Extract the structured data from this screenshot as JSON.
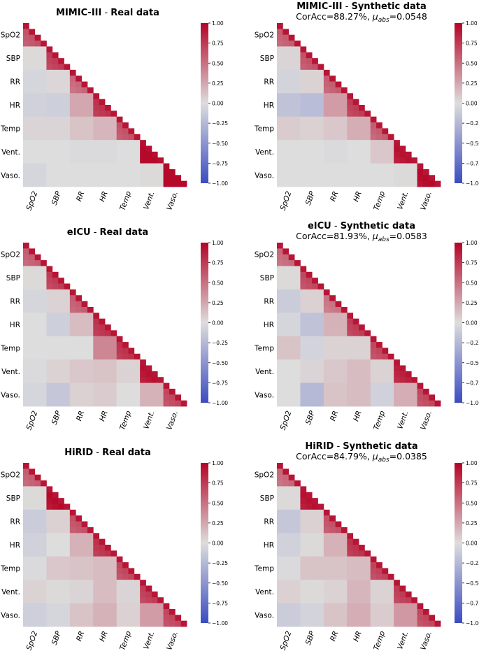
{
  "chart_data": {
    "type": "heatmap",
    "variables": [
      "SpO2",
      "SBP",
      "RR",
      "HR",
      "Temp",
      "Vent.",
      "Vaso."
    ],
    "colorbar": {
      "range": [
        -1.0,
        1.0
      ],
      "ticks": [
        "1.00",
        "0.75",
        "0.50",
        "0.25",
        "0.00",
        "−0.25",
        "−0.50",
        "−0.75",
        "−1.00"
      ],
      "colormap": [
        "#3b4cc0",
        "#dddddd",
        "#b40426"
      ]
    },
    "panels": [
      {
        "dataset": "MIMIC-III",
        "kind": "Real data",
        "title_sep": " - ",
        "stats": null,
        "block_corr": [
          [
            0.55
          ],
          [
            0.02,
            0.65
          ],
          [
            -0.05,
            0.03,
            0.45
          ],
          [
            -0.08,
            -0.1,
            0.25,
            0.7
          ],
          [
            0.04,
            0.04,
            0.12,
            0.18,
            0.55
          ],
          [
            0.0,
            0.0,
            -0.02,
            -0.02,
            0.0,
            0.95
          ],
          [
            -0.05,
            0.0,
            0.0,
            0.0,
            0.0,
            0.02,
            0.98
          ]
        ]
      },
      {
        "dataset": "MIMIC-III",
        "kind": "Synthetic data",
        "title_sep": " - ",
        "stats": {
          "prefix": "CorAcc=88.27%, ",
          "mu": "μ",
          "sub": "abs",
          "value": "=0.0548"
        },
        "block_corr": [
          [
            0.5
          ],
          [
            0.04,
            0.55
          ],
          [
            -0.06,
            0.05,
            0.5
          ],
          [
            -0.18,
            -0.22,
            0.3,
            0.65
          ],
          [
            0.08,
            0.06,
            0.1,
            0.22,
            0.5
          ],
          [
            0.0,
            0.0,
            -0.02,
            0.0,
            0.1,
            0.85
          ],
          [
            0.0,
            0.0,
            0.0,
            0.0,
            0.0,
            0.02,
            0.9
          ]
        ]
      },
      {
        "dataset": "eICU",
        "kind": "Real data",
        "title_sep": " - ",
        "stats": null,
        "block_corr": [
          [
            0.5
          ],
          [
            0.02,
            0.65
          ],
          [
            -0.05,
            0.05,
            0.5
          ],
          [
            0.0,
            -0.1,
            0.15,
            0.7
          ],
          [
            0.0,
            0.0,
            0.0,
            0.4,
            0.7
          ],
          [
            -0.02,
            0.05,
            0.1,
            0.12,
            0.05,
            0.85
          ],
          [
            -0.05,
            -0.15,
            0.06,
            0.08,
            0.0,
            0.2,
            0.6
          ]
        ]
      },
      {
        "dataset": "eICU",
        "kind": "Synthetic data",
        "title_sep": " - ",
        "stats": {
          "prefix": "CorAcc=81.93%, ",
          "mu": "μ",
          "sub": "abs",
          "value": "=0.0583"
        },
        "block_corr": [
          [
            0.45
          ],
          [
            0.02,
            0.6
          ],
          [
            -0.12,
            0.06,
            0.4
          ],
          [
            -0.05,
            -0.18,
            0.2,
            0.65
          ],
          [
            0.12,
            -0.06,
            0.05,
            0.05,
            0.6
          ],
          [
            0.0,
            0.04,
            0.1,
            0.15,
            0.05,
            0.78
          ],
          [
            0.0,
            -0.25,
            0.12,
            0.15,
            -0.08,
            0.22,
            0.6
          ]
        ]
      },
      {
        "dataset": "HiRID",
        "kind": "Real data",
        "title_sep": " - ",
        "stats": null,
        "block_corr": [
          [
            0.5
          ],
          [
            0.02,
            0.88
          ],
          [
            -0.12,
            0.06,
            0.55
          ],
          [
            -0.08,
            0.0,
            0.2,
            0.7
          ],
          [
            -0.02,
            0.1,
            0.12,
            0.15,
            0.6
          ],
          [
            0.05,
            0.02,
            0.04,
            0.15,
            0.04,
            0.65
          ],
          [
            -0.1,
            -0.05,
            0.12,
            0.2,
            0.06,
            0.3,
            0.6
          ]
        ]
      },
      {
        "dataset": "HiRID",
        "kind": "Synthetic data",
        "title_sep": " - ",
        "stats": {
          "prefix": "CorAcc=84.79%, ",
          "mu": "μ",
          "sub": "abs",
          "value": "=0.0385"
        },
        "block_corr": [
          [
            0.45
          ],
          [
            0.02,
            0.85
          ],
          [
            -0.15,
            0.06,
            0.55
          ],
          [
            -0.08,
            0.02,
            0.2,
            0.7
          ],
          [
            -0.02,
            0.12,
            0.12,
            0.15,
            0.62
          ],
          [
            0.06,
            0.02,
            0.05,
            0.18,
            0.05,
            0.65
          ],
          [
            -0.12,
            -0.06,
            0.12,
            0.22,
            0.08,
            0.32,
            0.6
          ]
        ]
      }
    ]
  }
}
